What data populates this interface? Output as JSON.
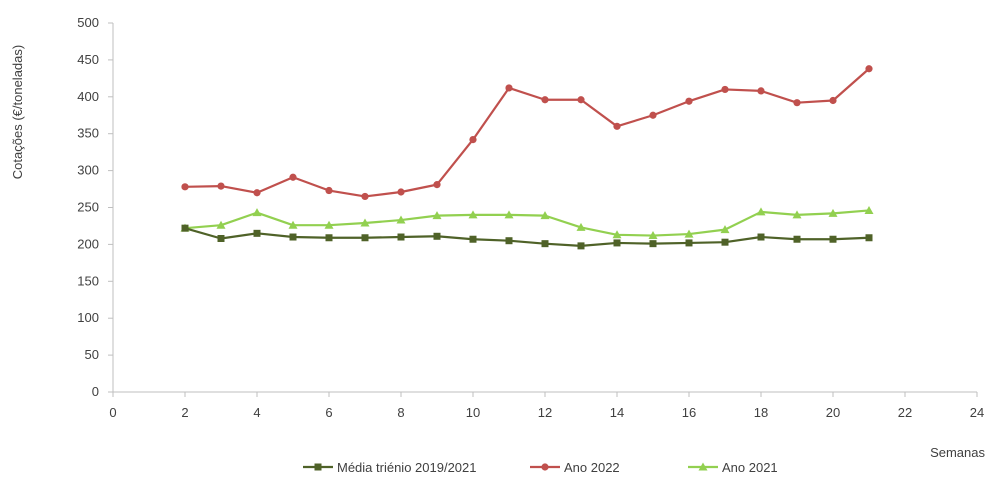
{
  "chart_data": {
    "type": "line",
    "title": "",
    "xlabel": "Semanas",
    "ylabel": "Cotações  (€/toneladas)",
    "xlim": [
      0,
      24
    ],
    "ylim": [
      0,
      500
    ],
    "x_ticks": [
      0,
      2,
      4,
      6,
      8,
      10,
      12,
      14,
      16,
      18,
      20,
      22,
      24
    ],
    "y_ticks": [
      0,
      50,
      100,
      150,
      200,
      250,
      300,
      350,
      400,
      450,
      500
    ],
    "grid": false,
    "legend_position": "bottom",
    "x": [
      2,
      3,
      4,
      5,
      6,
      7,
      8,
      9,
      10,
      11,
      12,
      13,
      14,
      15,
      16,
      17,
      18,
      19,
      20,
      21
    ],
    "series": [
      {
        "name": "Média triénio 2019/2021",
        "color": "#4f6228",
        "marker": "square",
        "values": [
          222,
          208,
          215,
          210,
          209,
          209,
          210,
          211,
          207,
          205,
          201,
          198,
          202,
          201,
          202,
          203,
          210,
          207,
          207,
          209
        ]
      },
      {
        "name": "Ano 2022",
        "color": "#c0504d",
        "marker": "circle",
        "values": [
          278,
          279,
          270,
          291,
          273,
          265,
          271,
          281,
          342,
          412,
          396,
          396,
          360,
          375,
          394,
          410,
          408,
          392,
          395,
          438
        ]
      },
      {
        "name": "Ano 2021",
        "color": "#92d050",
        "marker": "triangle",
        "values": [
          222,
          226,
          243,
          226,
          226,
          229,
          233,
          239,
          240,
          240,
          239,
          223,
          213,
          212,
          214,
          220,
          244,
          240,
          242,
          246
        ]
      }
    ]
  }
}
